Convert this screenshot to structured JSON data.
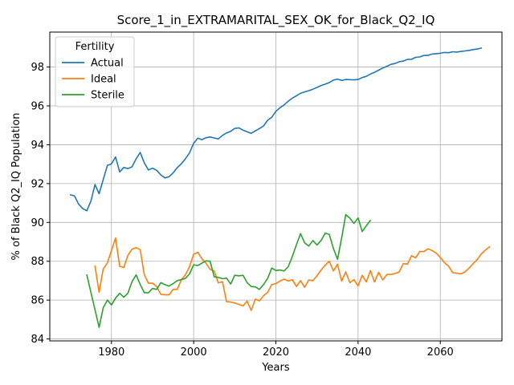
{
  "chart_data": {
    "type": "line",
    "title": "Score_1_in_EXTRAMARITAL_SEX_OK_for_Black_Q2_IQ",
    "xlabel": "Years",
    "ylabel": "% of Black Q2_IQ Population",
    "xlim": [
      1965,
      2075
    ],
    "ylim": [
      83.9,
      99.8
    ],
    "xticks": [
      1980,
      2000,
      2020,
      2040,
      2060
    ],
    "yticks": [
      84,
      86,
      88,
      90,
      92,
      94,
      96,
      98
    ],
    "grid": true,
    "legend": {
      "title": "Fertility",
      "position": "top-left"
    },
    "series": [
      {
        "name": "Actual",
        "color": "#1f77b4",
        "points": [
          [
            1970,
            91.42
          ],
          [
            1971,
            91.37
          ],
          [
            1972,
            90.95
          ],
          [
            1973,
            90.72
          ],
          [
            1974,
            90.6
          ],
          [
            1975,
            91.1
          ],
          [
            1976,
            91.95
          ],
          [
            1977,
            91.48
          ],
          [
            1978,
            92.2
          ],
          [
            1979,
            92.93
          ],
          [
            1980,
            93.02
          ],
          [
            1981,
            93.37
          ],
          [
            1982,
            92.6
          ],
          [
            1983,
            92.83
          ],
          [
            1984,
            92.77
          ],
          [
            1985,
            92.86
          ],
          [
            1986,
            93.28
          ],
          [
            1987,
            93.6
          ],
          [
            1988,
            93.06
          ],
          [
            1989,
            92.7
          ],
          [
            1990,
            92.79
          ],
          [
            1991,
            92.68
          ],
          [
            1992,
            92.45
          ],
          [
            1993,
            92.29
          ],
          [
            1994,
            92.35
          ],
          [
            1995,
            92.55
          ],
          [
            1996,
            92.82
          ],
          [
            1997,
            93.02
          ],
          [
            1998,
            93.28
          ],
          [
            1999,
            93.58
          ],
          [
            2000,
            94.07
          ],
          [
            2001,
            94.34
          ],
          [
            2002,
            94.26
          ],
          [
            2003,
            94.36
          ],
          [
            2004,
            94.4
          ],
          [
            2005,
            94.35
          ],
          [
            2006,
            94.3
          ],
          [
            2007,
            94.48
          ],
          [
            2008,
            94.61
          ],
          [
            2009,
            94.69
          ],
          [
            2010,
            94.84
          ],
          [
            2011,
            94.87
          ],
          [
            2012,
            94.75
          ],
          [
            2013,
            94.67
          ],
          [
            2014,
            94.59
          ],
          [
            2015,
            94.71
          ],
          [
            2016,
            94.83
          ],
          [
            2017,
            94.97
          ],
          [
            2018,
            95.26
          ],
          [
            2019,
            95.42
          ],
          [
            2020,
            95.72
          ],
          [
            2021,
            95.9
          ],
          [
            2022,
            96.05
          ],
          [
            2023,
            96.24
          ],
          [
            2024,
            96.4
          ],
          [
            2025,
            96.52
          ],
          [
            2026,
            96.65
          ],
          [
            2027,
            96.72
          ],
          [
            2028,
            96.78
          ],
          [
            2029,
            96.86
          ],
          [
            2030,
            96.95
          ],
          [
            2031,
            97.05
          ],
          [
            2032,
            97.12
          ],
          [
            2033,
            97.2
          ],
          [
            2034,
            97.33
          ],
          [
            2035,
            97.38
          ],
          [
            2036,
            97.31
          ],
          [
            2037,
            97.36
          ],
          [
            2038,
            97.35
          ],
          [
            2039,
            97.34
          ],
          [
            2040,
            97.36
          ],
          [
            2041,
            97.46
          ],
          [
            2042,
            97.52
          ],
          [
            2043,
            97.64
          ],
          [
            2044,
            97.73
          ],
          [
            2045,
            97.84
          ],
          [
            2046,
            97.95
          ],
          [
            2047,
            98.04
          ],
          [
            2048,
            98.14
          ],
          [
            2049,
            98.18
          ],
          [
            2050,
            98.27
          ],
          [
            2051,
            98.31
          ],
          [
            2052,
            98.39
          ],
          [
            2053,
            98.4
          ],
          [
            2054,
            98.5
          ],
          [
            2055,
            98.52
          ],
          [
            2056,
            98.6
          ],
          [
            2057,
            98.6
          ],
          [
            2058,
            98.67
          ],
          [
            2059,
            98.69
          ],
          [
            2060,
            98.71
          ],
          [
            2061,
            98.75
          ],
          [
            2062,
            98.74
          ],
          [
            2063,
            98.79
          ],
          [
            2064,
            98.77
          ],
          [
            2065,
            98.8
          ],
          [
            2066,
            98.83
          ],
          [
            2067,
            98.86
          ],
          [
            2068,
            98.9
          ],
          [
            2069,
            98.93
          ],
          [
            2070,
            98.98
          ]
        ]
      },
      {
        "name": "Ideal",
        "color": "#ff7f0e",
        "points": [
          [
            1976,
            87.75
          ],
          [
            1977,
            86.4
          ],
          [
            1978,
            87.6
          ],
          [
            1979,
            87.92
          ],
          [
            1980,
            88.55
          ],
          [
            1981,
            89.2
          ],
          [
            1982,
            87.74
          ],
          [
            1983,
            87.68
          ],
          [
            1984,
            88.3
          ],
          [
            1985,
            88.62
          ],
          [
            1986,
            88.7
          ],
          [
            1987,
            88.6
          ],
          [
            1988,
            87.3
          ],
          [
            1989,
            86.87
          ],
          [
            1990,
            86.87
          ],
          [
            1991,
            86.7
          ],
          [
            1992,
            86.3
          ],
          [
            1993,
            86.27
          ],
          [
            1994,
            86.27
          ],
          [
            1995,
            86.55
          ],
          [
            1996,
            86.55
          ],
          [
            1997,
            87.05
          ],
          [
            1998,
            87.3
          ],
          [
            1999,
            87.72
          ],
          [
            2000,
            88.36
          ],
          [
            2001,
            88.46
          ],
          [
            2002,
            88.13
          ],
          [
            2003,
            87.9
          ],
          [
            2004,
            87.58
          ],
          [
            2005,
            87.5
          ],
          [
            2006,
            86.88
          ],
          [
            2007,
            86.95
          ],
          [
            2008,
            85.92
          ],
          [
            2009,
            85.9
          ],
          [
            2010,
            85.85
          ],
          [
            2011,
            85.78
          ],
          [
            2012,
            85.7
          ],
          [
            2013,
            85.95
          ],
          [
            2014,
            85.47
          ],
          [
            2015,
            86.05
          ],
          [
            2016,
            85.96
          ],
          [
            2017,
            86.22
          ],
          [
            2018,
            86.4
          ],
          [
            2019,
            86.8
          ],
          [
            2020,
            86.85
          ],
          [
            2021,
            86.98
          ],
          [
            2022,
            87.08
          ],
          [
            2023,
            86.98
          ],
          [
            2024,
            87.05
          ],
          [
            2025,
            86.7
          ],
          [
            2026,
            87.0
          ],
          [
            2027,
            86.66
          ],
          [
            2028,
            87.03
          ],
          [
            2029,
            87.0
          ],
          [
            2030,
            87.25
          ],
          [
            2031,
            87.55
          ],
          [
            2032,
            87.8
          ],
          [
            2033,
            88.0
          ],
          [
            2034,
            87.5
          ],
          [
            2035,
            87.85
          ],
          [
            2036,
            86.98
          ],
          [
            2037,
            87.45
          ],
          [
            2038,
            86.9
          ],
          [
            2039,
            87.05
          ],
          [
            2040,
            86.73
          ],
          [
            2041,
            87.28
          ],
          [
            2042,
            86.93
          ],
          [
            2043,
            87.52
          ],
          [
            2044,
            86.93
          ],
          [
            2045,
            87.43
          ],
          [
            2046,
            87.04
          ],
          [
            2047,
            87.32
          ],
          [
            2048,
            87.32
          ],
          [
            2049,
            87.37
          ],
          [
            2050,
            87.45
          ],
          [
            2051,
            87.88
          ],
          [
            2052,
            87.85
          ],
          [
            2053,
            88.28
          ],
          [
            2054,
            88.18
          ],
          [
            2055,
            88.5
          ],
          [
            2056,
            88.5
          ],
          [
            2057,
            88.64
          ],
          [
            2058,
            88.55
          ],
          [
            2059,
            88.42
          ],
          [
            2060,
            88.2
          ],
          [
            2061,
            87.93
          ],
          [
            2062,
            87.75
          ],
          [
            2063,
            87.42
          ],
          [
            2064,
            87.38
          ],
          [
            2065,
            87.35
          ],
          [
            2066,
            87.45
          ],
          [
            2067,
            87.65
          ],
          [
            2068,
            87.88
          ],
          [
            2069,
            88.1
          ],
          [
            2070,
            88.38
          ],
          [
            2071,
            88.58
          ],
          [
            2072,
            88.75
          ]
        ]
      },
      {
        "name": "Sterile",
        "color": "#2ca02c",
        "points": [
          [
            1974,
            87.3
          ],
          [
            1975,
            86.4
          ],
          [
            1976,
            85.5
          ],
          [
            1977,
            84.6
          ],
          [
            1978,
            85.6
          ],
          [
            1979,
            86.0
          ],
          [
            1980,
            85.75
          ],
          [
            1981,
            86.1
          ],
          [
            1982,
            86.35
          ],
          [
            1983,
            86.15
          ],
          [
            1984,
            86.35
          ],
          [
            1985,
            86.95
          ],
          [
            1986,
            87.3
          ],
          [
            1987,
            86.8
          ],
          [
            1988,
            86.38
          ],
          [
            1989,
            86.38
          ],
          [
            1990,
            86.6
          ],
          [
            1991,
            86.55
          ],
          [
            1992,
            86.9
          ],
          [
            1993,
            86.8
          ],
          [
            1994,
            86.72
          ],
          [
            1995,
            86.85
          ],
          [
            1996,
            87.0
          ],
          [
            1997,
            87.05
          ],
          [
            1998,
            87.12
          ],
          [
            1999,
            87.35
          ],
          [
            2000,
            87.82
          ],
          [
            2001,
            87.78
          ],
          [
            2002,
            87.9
          ],
          [
            2003,
            88.02
          ],
          [
            2004,
            88.0
          ],
          [
            2005,
            87.2
          ],
          [
            2006,
            87.17
          ],
          [
            2007,
            87.1
          ],
          [
            2008,
            87.13
          ],
          [
            2009,
            86.83
          ],
          [
            2010,
            87.28
          ],
          [
            2011,
            87.25
          ],
          [
            2012,
            87.28
          ],
          [
            2013,
            86.9
          ],
          [
            2014,
            86.7
          ],
          [
            2015,
            86.68
          ],
          [
            2016,
            86.55
          ],
          [
            2017,
            86.8
          ],
          [
            2018,
            87.12
          ],
          [
            2019,
            87.65
          ],
          [
            2020,
            87.52
          ],
          [
            2021,
            87.55
          ],
          [
            2022,
            87.5
          ],
          [
            2023,
            87.72
          ],
          [
            2024,
            88.25
          ],
          [
            2025,
            88.85
          ],
          [
            2026,
            89.42
          ],
          [
            2027,
            88.95
          ],
          [
            2028,
            88.78
          ],
          [
            2029,
            89.07
          ],
          [
            2030,
            88.84
          ],
          [
            2031,
            89.07
          ],
          [
            2032,
            89.45
          ],
          [
            2033,
            89.38
          ],
          [
            2034,
            88.65
          ],
          [
            2035,
            88.1
          ],
          [
            2036,
            89.2
          ],
          [
            2037,
            90.4
          ],
          [
            2038,
            90.22
          ],
          [
            2039,
            89.95
          ],
          [
            2040,
            90.23
          ],
          [
            2041,
            89.53
          ],
          [
            2042,
            89.83
          ],
          [
            2043,
            90.1
          ]
        ]
      }
    ]
  }
}
